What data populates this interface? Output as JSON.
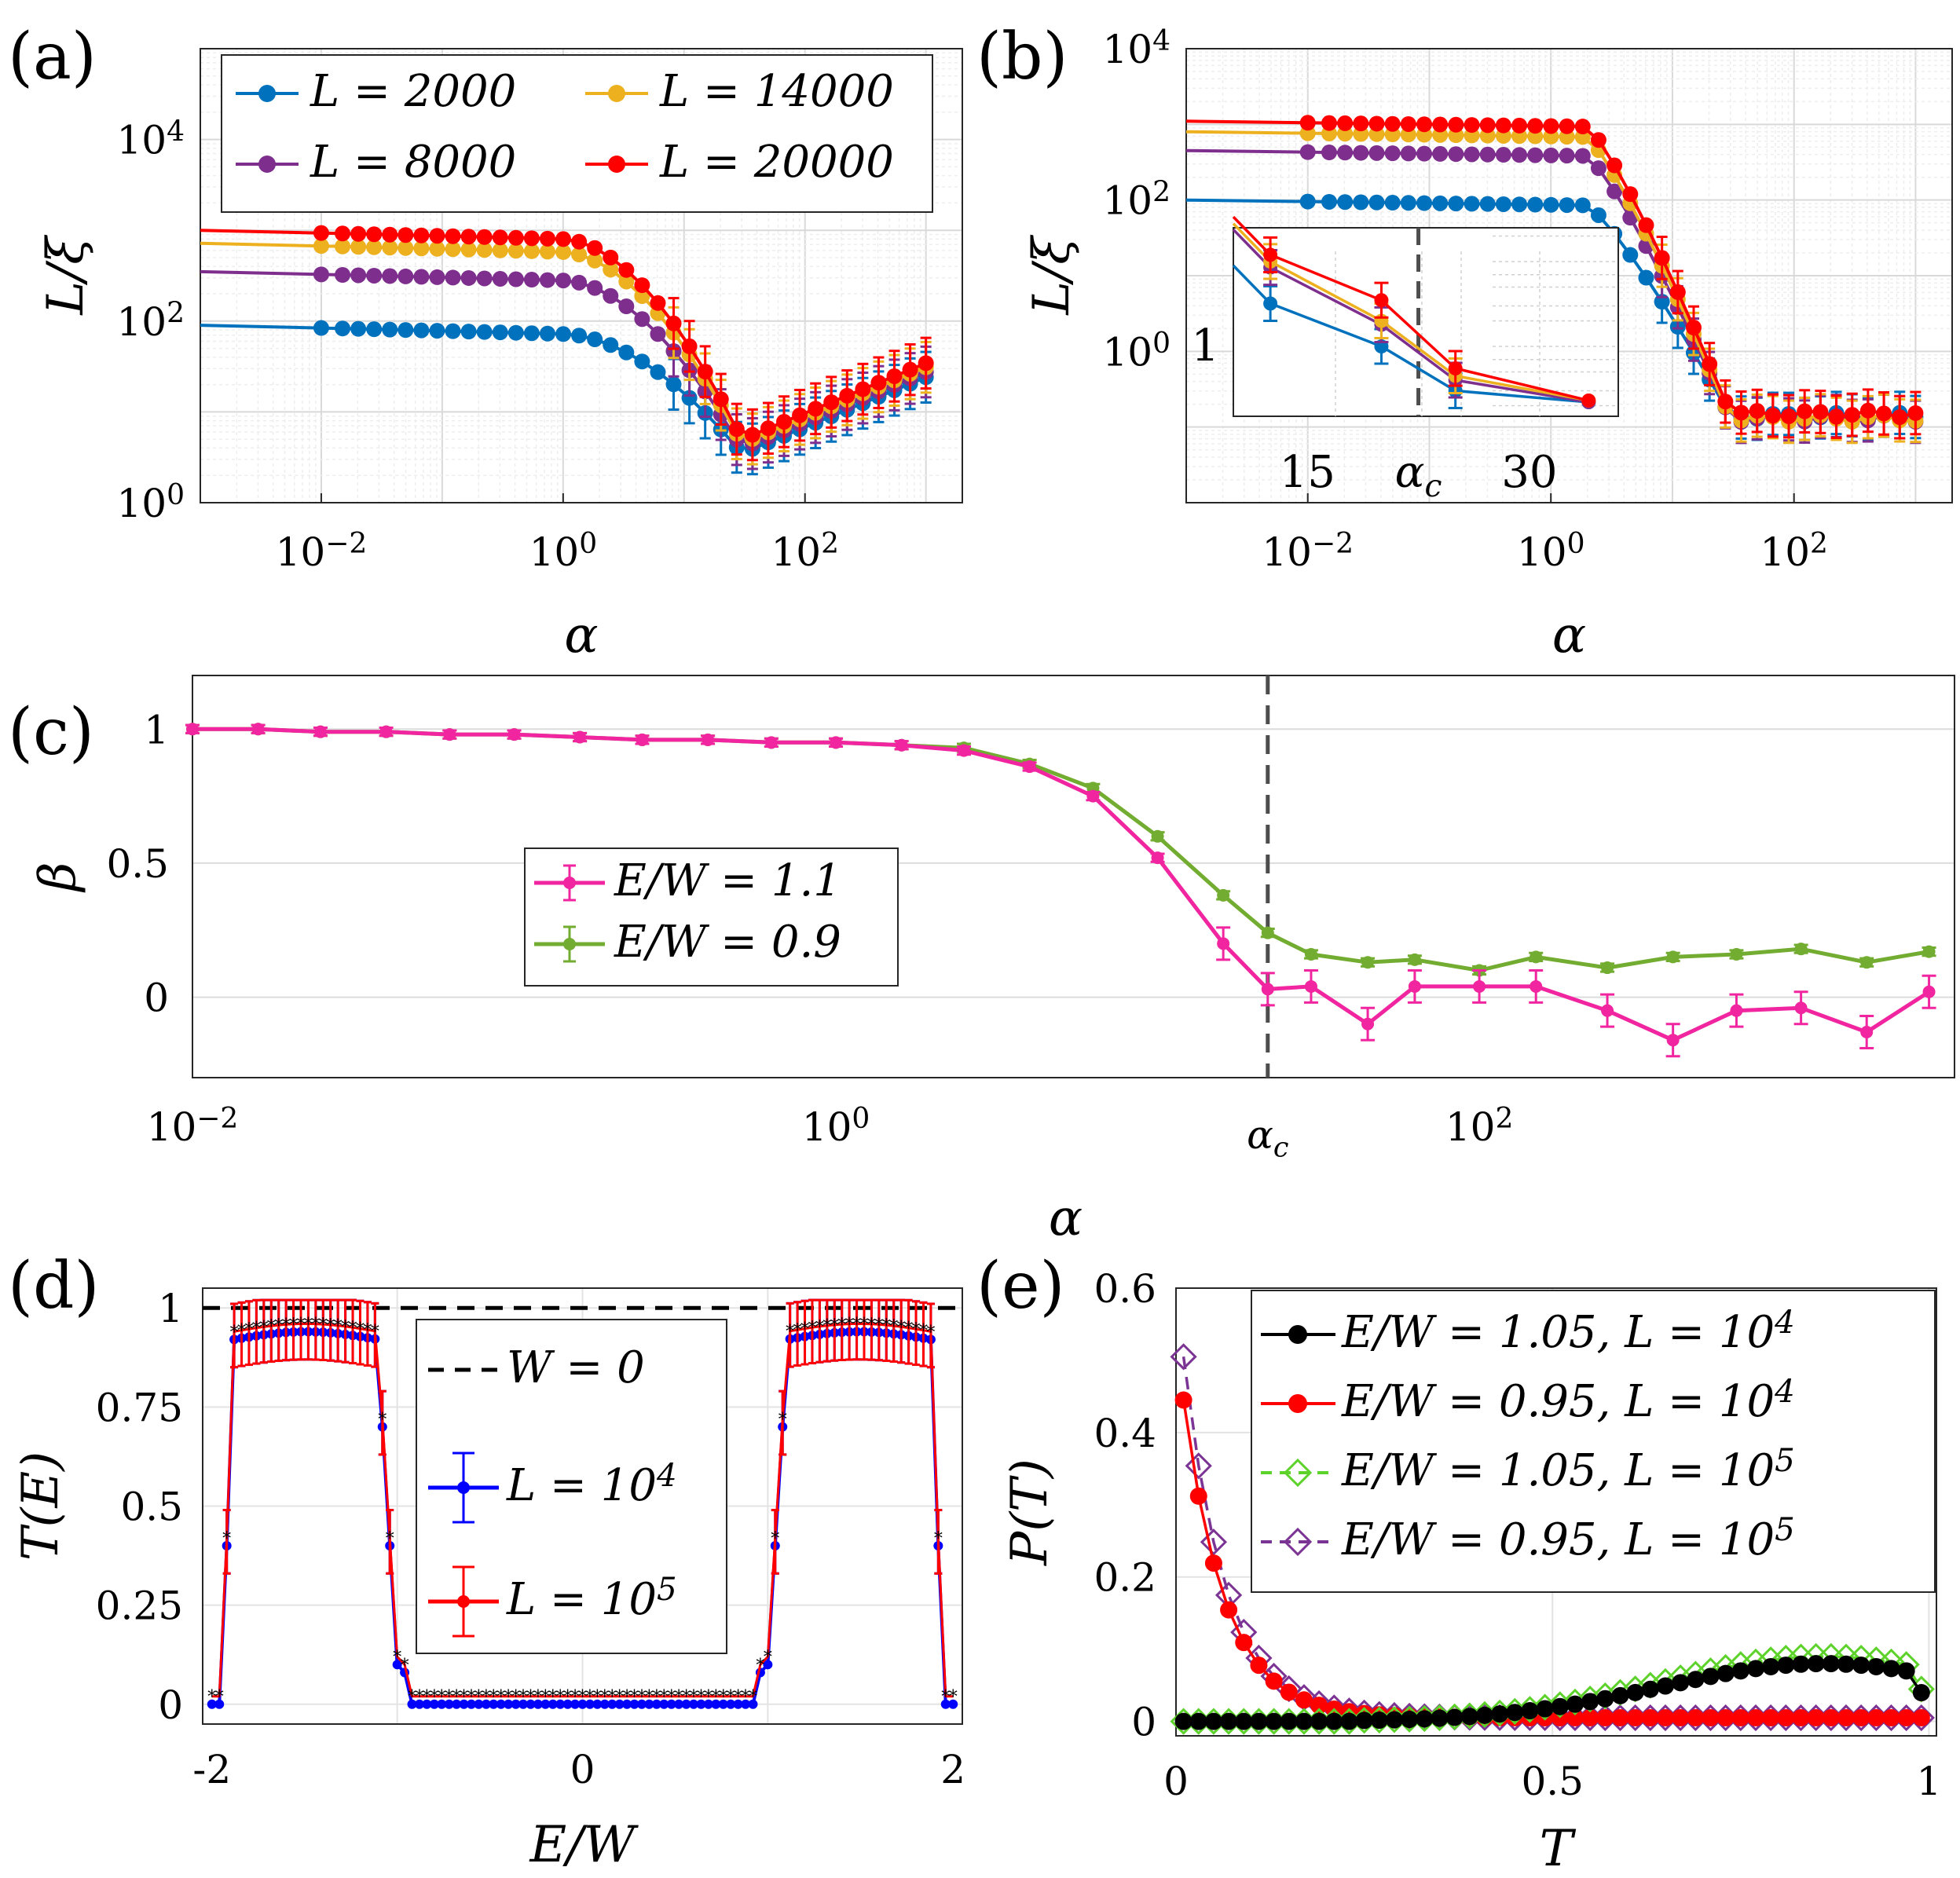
{
  "panel_labels": [
    "(a)",
    "(b)",
    "(c)",
    "(d)",
    "(e)"
  ],
  "colors": {
    "blue": "#0072BD",
    "yellow": "#EDB120",
    "purple": "#7E2F8E",
    "red": "#FF0000",
    "magenta": "#F0259F",
    "green": "#72AC30",
    "black": "#000000",
    "lightgreen": "#5CD22B",
    "violet": "#7B3494",
    "darkblue": "#0000FF"
  },
  "chart_data": [
    {
      "id": "a",
      "type": "line",
      "xlabel": "α",
      "ylabel": "L/ξ",
      "xscale": "log",
      "yscale": "log",
      "xlim": [
        0.001,
        2000
      ],
      "ylim": [
        1,
        100000
      ],
      "xticks": [
        {
          "v": 0.01,
          "t": "10",
          "e": "−2"
        },
        {
          "v": 1,
          "t": "10",
          "e": "0"
        },
        {
          "v": 100,
          "t": "10",
          "e": "2"
        }
      ],
      "yticks": [
        {
          "v": 1,
          "t": "10",
          "e": "0"
        },
        {
          "v": 100,
          "t": "10",
          "e": "2"
        },
        {
          "v": 10000,
          "t": "10",
          "e": "4"
        }
      ],
      "grid": true,
      "legend_position": "top, 2 columns",
      "series": [
        {
          "name": "L = 2000",
          "color": "blue",
          "base": 90,
          "dip": 3.5
        },
        {
          "name": "L = 8000",
          "color": "purple",
          "base": 350,
          "dip": 4
        },
        {
          "name": "L = 14000",
          "color": "yellow",
          "base": 720,
          "dip": 4.5
        },
        {
          "name": "L = 20000",
          "color": "red",
          "base": 1000,
          "dip": 5
        }
      ]
    },
    {
      "id": "b",
      "type": "line",
      "xlabel": "α",
      "ylabel": "L/ξ",
      "xscale": "log",
      "yscale": "log",
      "xlim": [
        0.001,
        2000
      ],
      "ylim": [
        0.01,
        10000
      ],
      "xticks": [
        {
          "v": 0.01,
          "t": "10",
          "e": "−2"
        },
        {
          "v": 1,
          "t": "10",
          "e": "0"
        },
        {
          "v": 100,
          "t": "10",
          "e": "2"
        }
      ],
      "yticks": [
        {
          "v": 1,
          "t": "10",
          "e": "0"
        },
        {
          "v": 100,
          "t": "10",
          "e": "2"
        },
        {
          "v": 10000,
          "t": "10",
          "e": "4"
        }
      ],
      "grid": true,
      "series": [
        {
          "name": "L = 2000",
          "color": "blue",
          "base": 100,
          "tail": 0.14
        },
        {
          "name": "L = 8000",
          "color": "purple",
          "base": 450,
          "tail": 0.13
        },
        {
          "name": "L = 14000",
          "color": "yellow",
          "base": 800,
          "tail": 0.13
        },
        {
          "name": "L = 20000",
          "color": "red",
          "base": 1100,
          "tail": 0.15
        }
      ],
      "inset": {
        "x": [
          12.5,
          20,
          25,
          34
        ],
        "xticks": [
          "15",
          "α",
          "30"
        ],
        "xtick_sub": "c",
        "alpha_c": 22.5,
        "yticks": [
          "1"
        ],
        "series": [
          {
            "color": "blue",
            "values": [
              3.2,
              1.0,
              0.3,
              0.22
            ]
          },
          {
            "color": "purple",
            "values": [
              8.5,
              1.8,
              0.4,
              0.22
            ]
          },
          {
            "color": "yellow",
            "values": [
              10,
              2.0,
              0.45,
              0.23
            ]
          },
          {
            "color": "red",
            "values": [
              12,
              3.5,
              0.55,
              0.23
            ]
          }
        ]
      }
    },
    {
      "id": "c",
      "type": "line",
      "xlabel": "α",
      "ylabel": "β",
      "xscale": "log",
      "xlim": [
        0.01,
        3000
      ],
      "ylim": [
        -0.3,
        1.2
      ],
      "xticks": [
        {
          "v": 0.01,
          "t": "10",
          "e": "−2"
        },
        {
          "v": 1,
          "t": "10",
          "e": "0"
        },
        {
          "v": 100,
          "t": "10",
          "e": "2"
        }
      ],
      "yticks": [
        {
          "v": 0,
          "t": "0"
        },
        {
          "v": 0.5,
          "t": "0.5"
        },
        {
          "v": 1,
          "t": "1"
        }
      ],
      "alpha_c": 22,
      "alpha_c_label": "α",
      "alpha_c_sub": "c",
      "grid": "horizontal",
      "legend_position": "center-left",
      "x": [
        0.01,
        0.016,
        0.025,
        0.04,
        0.063,
        0.1,
        0.16,
        0.25,
        0.4,
        0.63,
        1.0,
        1.6,
        2.5,
        4,
        6.3,
        10,
        16,
        22,
        30,
        45,
        63,
        100,
        150,
        250,
        400,
        630,
        1000,
        1600,
        2500
      ],
      "series": [
        {
          "name": "E/W = 1.1",
          "color": "magenta",
          "values": [
            1.0,
            1.0,
            0.99,
            0.99,
            0.98,
            0.98,
            0.97,
            0.96,
            0.96,
            0.95,
            0.95,
            0.94,
            0.92,
            0.86,
            0.75,
            0.52,
            0.2,
            0.03,
            0.04,
            -0.1,
            0.04,
            0.04,
            0.04,
            -0.05,
            -0.16,
            -0.05,
            -0.04,
            -0.13,
            0.02
          ]
        },
        {
          "name": "E/W = 0.9",
          "color": "green",
          "values": [
            1.0,
            1.0,
            0.99,
            0.99,
            0.98,
            0.98,
            0.97,
            0.96,
            0.96,
            0.95,
            0.95,
            0.94,
            0.93,
            0.87,
            0.78,
            0.6,
            0.38,
            0.24,
            0.16,
            0.13,
            0.14,
            0.1,
            0.15,
            0.11,
            0.15,
            0.16,
            0.18,
            0.13,
            0.17
          ]
        }
      ]
    },
    {
      "id": "d",
      "type": "line",
      "xlabel": "E/W",
      "ylabel": "T(E)",
      "xlim": [
        -2.05,
        2.05
      ],
      "ylim": [
        -0.05,
        1.05
      ],
      "xticks": [
        {
          "v": -2,
          "t": "-2"
        },
        {
          "v": 0,
          "t": "0"
        },
        {
          "v": 2,
          "t": "2"
        }
      ],
      "yticks": [
        {
          "v": 0,
          "t": "0"
        },
        {
          "v": 0.25,
          "t": "0.25"
        },
        {
          "v": 0.5,
          "t": "0.5"
        },
        {
          "v": 0.75,
          "t": "0.75"
        },
        {
          "v": 1,
          "t": "1"
        }
      ],
      "grid": true,
      "legend_position": "center",
      "series": [
        {
          "name": "W = 0",
          "color": "black",
          "style": "dashed"
        },
        {
          "name": "L = 10",
          "sup": "4",
          "color": "darkblue"
        },
        {
          "name": "L = 10",
          "sup": "5",
          "color": "red"
        }
      ]
    },
    {
      "id": "e",
      "type": "line",
      "xlabel": "T",
      "ylabel": "P(T)",
      "xlim": [
        0,
        1.01
      ],
      "ylim": [
        -0.02,
        0.6
      ],
      "xticks": [
        {
          "v": 0,
          "t": "0"
        },
        {
          "v": 0.5,
          "t": "0.5"
        },
        {
          "v": 1,
          "t": "1"
        }
      ],
      "yticks": [
        {
          "v": 0,
          "t": "0"
        },
        {
          "v": 0.2,
          "t": "0.2"
        },
        {
          "v": 0.4,
          "t": "0.4"
        },
        {
          "v": 0.6,
          "t": "0.6"
        }
      ],
      "grid": true,
      "legend_position": "top-right",
      "series": [
        {
          "name": "E/W = 1.05, L = 10",
          "sup": "4",
          "color": "black",
          "marker": "dot"
        },
        {
          "name": "E/W = 0.95, L = 10",
          "sup": "4",
          "color": "red",
          "marker": "dot"
        },
        {
          "name": "E/W = 1.05, L = 10",
          "sup": "5",
          "color": "lightgreen",
          "marker": "diamond",
          "style": "dashed"
        },
        {
          "name": "E/W = 0.95, L = 10",
          "sup": "5",
          "color": "violet",
          "marker": "diamond",
          "style": "dashed"
        }
      ]
    }
  ]
}
